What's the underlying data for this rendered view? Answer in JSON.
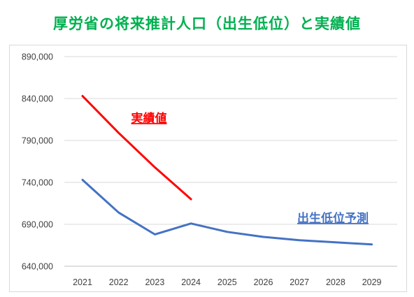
{
  "page": {
    "title": "厚労省の将来推計人口（出生低位）と実績値"
  },
  "chart_data": {
    "type": "line",
    "title": "厚労省の将来推計人口（出生低位）と実績値",
    "x": [
      "2021",
      "2022",
      "2023",
      "2024",
      "2025",
      "2026",
      "2027",
      "2028",
      "2029"
    ],
    "ylim": [
      640000,
      890000
    ],
    "yticks": [
      640000,
      690000,
      740000,
      790000,
      840000,
      890000
    ],
    "ytick_labels": [
      "640,000",
      "690,000",
      "740,000",
      "790,000",
      "840,000",
      "890,000"
    ],
    "grid": true,
    "legend": "none",
    "series": [
      {
        "name": "実績値",
        "color": "#ff0000",
        "values": [
          843000,
          799000,
          758000,
          720000,
          null,
          null,
          null,
          null,
          null
        ]
      },
      {
        "name": "出生低位予測",
        "color": "#4472c4",
        "values": [
          743000,
          704000,
          678000,
          691000,
          681000,
          675000,
          671000,
          668500,
          666000
        ]
      }
    ]
  }
}
